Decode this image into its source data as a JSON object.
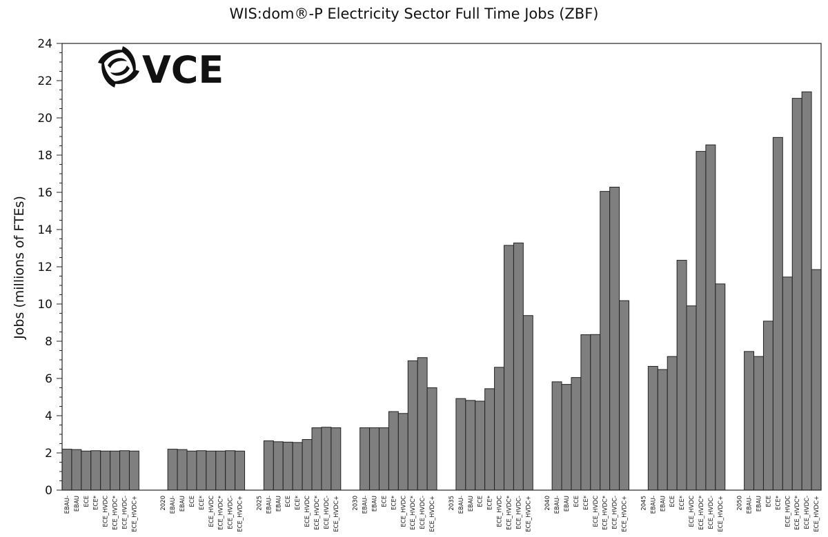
{
  "chart_data": {
    "type": "bar",
    "title": "WIS:dom®-P Electricity Sector Full Time Jobs (ZBF)",
    "xlabel": "",
    "ylabel": "Jobs (millions of FTEs)",
    "ylim": [
      0,
      24
    ],
    "yticks": [
      0,
      2,
      4,
      6,
      8,
      10,
      12,
      14,
      16,
      18,
      20,
      22,
      24
    ],
    "grid": false,
    "bar_color": "#7f7f7f",
    "groups": [
      {
        "year_label": "",
        "categories": [
          "EBAU-",
          "EBAU",
          "ECE",
          "ECE*",
          "ECE_HVDC",
          "ECE_HVDC*",
          "ECE_HVDC-",
          "ECE_HVDC+"
        ],
        "values": [
          2.2,
          2.18,
          2.1,
          2.12,
          2.1,
          2.1,
          2.12,
          2.1
        ]
      },
      {
        "year_label": "2020",
        "categories": [
          "EBAU-",
          "EBAU",
          "ECE",
          "ECE*",
          "ECE_HVDC",
          "ECE_HVDC*",
          "ECE_HVDC-",
          "ECE_HVDC+"
        ],
        "values": [
          2.2,
          2.18,
          2.1,
          2.12,
          2.1,
          2.1,
          2.12,
          2.1
        ]
      },
      {
        "year_label": "2025",
        "categories": [
          "EBAU-",
          "EBAU",
          "ECE",
          "ECE*",
          "ECE_HVDC",
          "ECE_HVDC*",
          "ECE_HVDC-",
          "ECE_HVDC+"
        ],
        "values": [
          2.65,
          2.6,
          2.58,
          2.56,
          2.72,
          3.35,
          3.38,
          3.35
        ]
      },
      {
        "year_label": "2030",
        "categories": [
          "EBAU-",
          "EBAU",
          "ECE",
          "ECE*",
          "ECE_HVDC",
          "ECE_HVDC*",
          "ECE_HVDC-",
          "ECE_HVDC+"
        ],
        "values": [
          3.35,
          3.35,
          3.35,
          4.22,
          4.12,
          6.95,
          7.12,
          5.5
        ]
      },
      {
        "year_label": "2035",
        "categories": [
          "EBAU-",
          "EBAU",
          "ECE",
          "ECE*",
          "ECE_HVDC",
          "ECE_HVDC*",
          "ECE_HVDC-",
          "ECE_HVDC+"
        ],
        "values": [
          4.92,
          4.82,
          4.78,
          5.45,
          6.6,
          13.15,
          13.28,
          9.38
        ]
      },
      {
        "year_label": "2040",
        "categories": [
          "EBAU-",
          "EBAU",
          "ECE",
          "ECE*",
          "ECE_HVDC",
          "ECE_HVDC*",
          "ECE_HVDC-",
          "ECE_HVDC+"
        ],
        "values": [
          5.82,
          5.68,
          6.05,
          8.35,
          8.36,
          16.05,
          16.28,
          10.18
        ]
      },
      {
        "year_label": "2045",
        "categories": [
          "EBAU-",
          "EBAU",
          "ECE",
          "ECE*",
          "ECE_HVDC",
          "ECE_HVDC*",
          "ECE_HVDC-",
          "ECE_HVDC+"
        ],
        "values": [
          6.65,
          6.48,
          7.18,
          12.35,
          9.9,
          18.2,
          18.55,
          11.08
        ]
      },
      {
        "year_label": "2050",
        "categories": [
          "EBAU-",
          "EBAU",
          "ECE",
          "ECE*",
          "ECE_HVDC",
          "ECE_HVDC*",
          "ECE_HVDC-",
          "ECE_HVDC+"
        ],
        "values": [
          7.45,
          7.18,
          9.08,
          18.95,
          11.45,
          21.05,
          21.4,
          11.85
        ]
      }
    ]
  },
  "logo": {
    "text": "VCE",
    "icon": "swirl-logo-icon"
  }
}
